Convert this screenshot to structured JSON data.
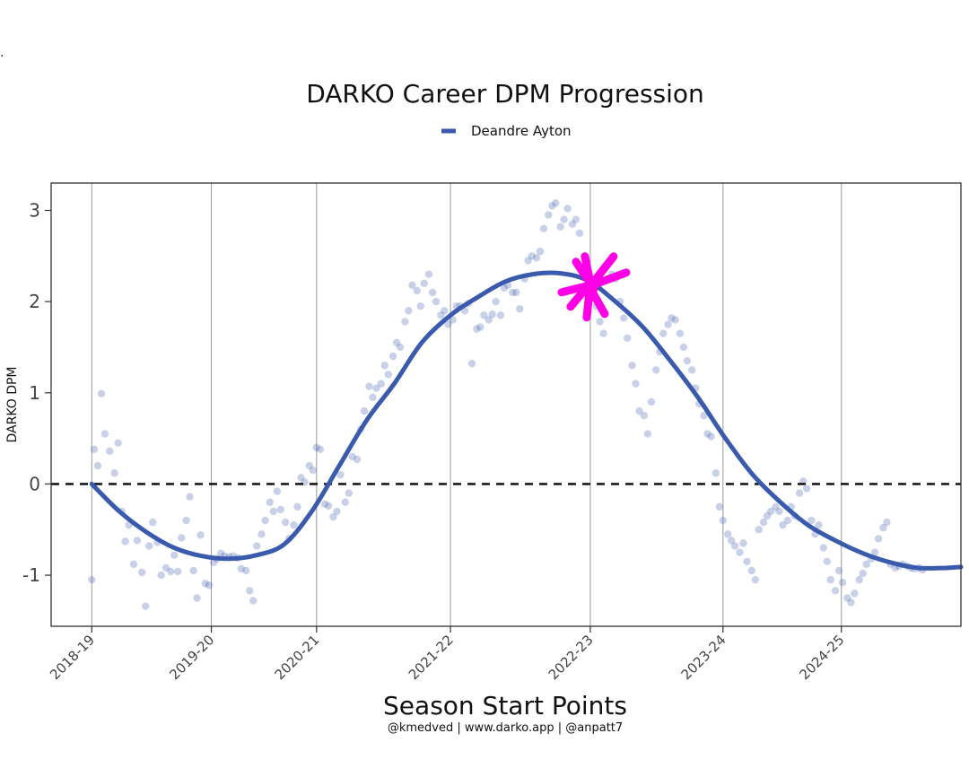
{
  "chart_data": {
    "type": "scatter",
    "title": "DARKO Career DPM Progression",
    "xlabel": "Season Start Points",
    "ylabel": "DARKO DPM",
    "credit": "@kmedved | www.darko.app | @anpatt7",
    "corner_mark": ".",
    "x_axis_type": "seasons",
    "x_ticks": [
      {
        "label": "2018-19",
        "pos": 0
      },
      {
        "label": "2019-20",
        "pos": 1
      },
      {
        "label": "2020-21",
        "pos": 1.88
      },
      {
        "label": "2021-22",
        "pos": 3.0
      },
      {
        "label": "2022-23",
        "pos": 4.17
      },
      {
        "label": "2023-24",
        "pos": 5.28
      },
      {
        "label": "2024-25",
        "pos": 6.27
      }
    ],
    "xlim": [
      -0.34,
      7.27
    ],
    "ylim": [
      -1.56,
      3.3
    ],
    "yticks": [
      -1,
      0,
      1,
      2,
      3
    ],
    "reference_line": {
      "y": 0,
      "style": "dashed",
      "color": "#000000"
    },
    "grid": "vertical lines at season starts",
    "legend_position": "top-center",
    "series": [
      {
        "name": "Deandre Ayton",
        "color": "#3a5aad",
        "smooth": [
          [
            0.0,
            0.0
          ],
          [
            0.23,
            -0.3
          ],
          [
            0.46,
            -0.53
          ],
          [
            0.69,
            -0.7
          ],
          [
            0.92,
            -0.79
          ],
          [
            1.15,
            -0.82
          ],
          [
            1.38,
            -0.78
          ],
          [
            1.61,
            -0.66
          ],
          [
            1.84,
            -0.3
          ],
          [
            2.07,
            0.2
          ],
          [
            2.3,
            0.7
          ],
          [
            2.53,
            1.1
          ],
          [
            2.76,
            1.55
          ],
          [
            3.0,
            1.85
          ],
          [
            3.23,
            2.05
          ],
          [
            3.46,
            2.22
          ],
          [
            3.69,
            2.3
          ],
          [
            3.92,
            2.31
          ],
          [
            4.15,
            2.23
          ],
          [
            4.38,
            2.0
          ],
          [
            4.61,
            1.72
          ],
          [
            4.84,
            1.35
          ],
          [
            5.07,
            0.95
          ],
          [
            5.3,
            0.5
          ],
          [
            5.53,
            0.1
          ],
          [
            5.76,
            -0.2
          ],
          [
            5.99,
            -0.45
          ],
          [
            6.22,
            -0.62
          ],
          [
            6.45,
            -0.76
          ],
          [
            6.68,
            -0.86
          ],
          [
            6.91,
            -0.92
          ],
          [
            7.14,
            -0.92
          ],
          [
            7.27,
            -0.91
          ]
        ],
        "points": [
          [
            0.0,
            -1.05
          ],
          [
            0.02,
            0.38
          ],
          [
            0.05,
            0.2
          ],
          [
            0.08,
            0.99
          ],
          [
            0.11,
            0.55
          ],
          [
            0.15,
            0.36
          ],
          [
            0.19,
            0.12
          ],
          [
            0.22,
            0.45
          ],
          [
            0.25,
            -0.3
          ],
          [
            0.28,
            -0.63
          ],
          [
            0.31,
            -0.45
          ],
          [
            0.35,
            -0.88
          ],
          [
            0.38,
            -0.62
          ],
          [
            0.42,
            -0.97
          ],
          [
            0.45,
            -1.34
          ],
          [
            0.48,
            -0.68
          ],
          [
            0.51,
            -0.42
          ],
          [
            0.55,
            -0.64
          ],
          [
            0.58,
            -1.0
          ],
          [
            0.62,
            -0.92
          ],
          [
            0.66,
            -0.96
          ],
          [
            0.69,
            -0.78
          ],
          [
            0.72,
            -0.96
          ],
          [
            0.75,
            -0.59
          ],
          [
            0.79,
            -0.4
          ],
          [
            0.82,
            -0.14
          ],
          [
            0.85,
            -0.95
          ],
          [
            0.88,
            -1.25
          ],
          [
            0.91,
            -0.56
          ],
          [
            0.95,
            -1.09
          ],
          [
            0.98,
            -1.11
          ],
          [
            1.02,
            -0.86
          ],
          [
            1.05,
            -0.82
          ],
          [
            1.08,
            -0.76
          ],
          [
            1.11,
            -0.79
          ],
          [
            1.15,
            -0.8
          ],
          [
            1.18,
            -0.79
          ],
          [
            1.22,
            -0.81
          ],
          [
            1.25,
            -0.93
          ],
          [
            1.29,
            -0.95
          ],
          [
            1.32,
            -1.17
          ],
          [
            1.35,
            -1.28
          ],
          [
            1.38,
            -0.68
          ],
          [
            1.42,
            -0.55
          ],
          [
            1.45,
            -0.4
          ],
          [
            1.49,
            -0.2
          ],
          [
            1.52,
            -0.3
          ],
          [
            1.55,
            -0.08
          ],
          [
            1.58,
            -0.28
          ],
          [
            1.62,
            -0.42
          ],
          [
            1.65,
            -0.6
          ],
          [
            1.69,
            -0.45
          ],
          [
            1.72,
            -0.25
          ],
          [
            1.75,
            0.07
          ],
          [
            1.78,
            0.02
          ],
          [
            1.82,
            0.2
          ],
          [
            1.85,
            0.15
          ],
          [
            1.88,
            0.4
          ],
          [
            1.91,
            0.38
          ],
          [
            1.95,
            -0.22
          ],
          [
            1.98,
            -0.24
          ],
          [
            2.02,
            -0.36
          ],
          [
            2.05,
            -0.3
          ],
          [
            2.08,
            0.1
          ],
          [
            2.12,
            -0.2
          ],
          [
            2.15,
            -0.1
          ],
          [
            2.18,
            0.3
          ],
          [
            2.22,
            0.27
          ],
          [
            2.25,
            0.6
          ],
          [
            2.28,
            0.8
          ],
          [
            2.32,
            1.07
          ],
          [
            2.35,
            0.95
          ],
          [
            2.38,
            1.05
          ],
          [
            2.42,
            1.1
          ],
          [
            2.45,
            1.3
          ],
          [
            2.48,
            1.2
          ],
          [
            2.52,
            1.4
          ],
          [
            2.55,
            1.55
          ],
          [
            2.58,
            1.5
          ],
          [
            2.62,
            1.78
          ],
          [
            2.65,
            1.9
          ],
          [
            2.68,
            2.18
          ],
          [
            2.72,
            2.12
          ],
          [
            2.75,
            1.95
          ],
          [
            2.78,
            2.2
          ],
          [
            2.82,
            2.3
          ],
          [
            2.85,
            2.1
          ],
          [
            2.88,
            2.0
          ],
          [
            2.92,
            1.85
          ],
          [
            2.95,
            1.9
          ],
          [
            2.98,
            1.75
          ],
          [
            3.02,
            1.8
          ],
          [
            3.05,
            1.95
          ],
          [
            3.08,
            1.95
          ],
          [
            3.12,
            1.9
          ],
          [
            3.15,
            1.98
          ],
          [
            3.18,
            1.32
          ],
          [
            3.22,
            1.7
          ],
          [
            3.25,
            1.72
          ],
          [
            3.28,
            1.85
          ],
          [
            3.32,
            1.8
          ],
          [
            3.35,
            1.86
          ],
          [
            3.38,
            2.0
          ],
          [
            3.42,
            1.85
          ],
          [
            3.45,
            2.15
          ],
          [
            3.48,
            2.18
          ],
          [
            3.52,
            2.1
          ],
          [
            3.55,
            2.1
          ],
          [
            3.58,
            1.92
          ],
          [
            3.62,
            2.25
          ],
          [
            3.65,
            2.45
          ],
          [
            3.68,
            2.5
          ],
          [
            3.72,
            2.48
          ],
          [
            3.75,
            2.55
          ],
          [
            3.78,
            2.8
          ],
          [
            3.82,
            2.95
          ],
          [
            3.85,
            3.05
          ],
          [
            3.88,
            3.08
          ],
          [
            3.92,
            2.82
          ],
          [
            3.95,
            2.9
          ],
          [
            3.98,
            3.02
          ],
          [
            4.02,
            2.85
          ],
          [
            4.05,
            2.9
          ],
          [
            4.08,
            2.75
          ],
          [
            4.12,
            2.5
          ],
          [
            4.15,
            2.3
          ],
          [
            4.18,
            2.2
          ],
          [
            4.22,
            1.95
          ],
          [
            4.25,
            1.78
          ],
          [
            4.28,
            1.65
          ],
          [
            4.32,
            2.42
          ],
          [
            4.35,
            2.3
          ],
          [
            4.38,
            2.25
          ],
          [
            4.42,
            2.0
          ],
          [
            4.45,
            1.82
          ],
          [
            4.48,
            1.6
          ],
          [
            4.52,
            1.3
          ],
          [
            4.55,
            1.1
          ],
          [
            4.58,
            0.8
          ],
          [
            4.62,
            0.75
          ],
          [
            4.65,
            0.55
          ],
          [
            4.68,
            0.9
          ],
          [
            4.72,
            1.25
          ],
          [
            4.75,
            1.45
          ],
          [
            4.78,
            1.65
          ],
          [
            4.82,
            1.75
          ],
          [
            4.85,
            1.82
          ],
          [
            4.88,
            1.8
          ],
          [
            4.92,
            1.65
          ],
          [
            4.95,
            1.5
          ],
          [
            4.98,
            1.35
          ],
          [
            5.02,
            1.25
          ],
          [
            5.05,
            1.05
          ],
          [
            5.08,
            0.88
          ],
          [
            5.12,
            0.75
          ],
          [
            5.15,
            0.55
          ],
          [
            5.18,
            0.52
          ],
          [
            5.22,
            0.12
          ],
          [
            5.25,
            -0.25
          ],
          [
            5.28,
            -0.4
          ],
          [
            5.32,
            -0.55
          ],
          [
            5.35,
            -0.62
          ],
          [
            5.38,
            -0.68
          ],
          [
            5.42,
            -0.75
          ],
          [
            5.45,
            -0.65
          ],
          [
            5.48,
            -0.85
          ],
          [
            5.52,
            -0.95
          ],
          [
            5.55,
            -1.05
          ],
          [
            5.58,
            -0.5
          ],
          [
            5.62,
            -0.42
          ],
          [
            5.65,
            -0.35
          ],
          [
            5.68,
            -0.3
          ],
          [
            5.72,
            -0.25
          ],
          [
            5.75,
            -0.3
          ],
          [
            5.78,
            -0.45
          ],
          [
            5.82,
            -0.4
          ],
          [
            5.85,
            -0.25
          ],
          [
            5.88,
            -0.35
          ],
          [
            5.92,
            -0.1
          ],
          [
            5.95,
            0.03
          ],
          [
            5.98,
            -0.05
          ],
          [
            6.02,
            -0.4
          ],
          [
            6.05,
            -0.55
          ],
          [
            6.08,
            -0.45
          ],
          [
            6.12,
            -0.7
          ],
          [
            6.15,
            -0.85
          ],
          [
            6.18,
            -1.05
          ],
          [
            6.22,
            -1.17
          ],
          [
            6.25,
            -0.95
          ],
          [
            6.28,
            -1.08
          ],
          [
            6.32,
            -1.25
          ],
          [
            6.35,
            -1.3
          ],
          [
            6.38,
            -1.2
          ],
          [
            6.42,
            -1.05
          ],
          [
            6.45,
            -0.98
          ],
          [
            6.48,
            -0.88
          ],
          [
            6.52,
            -0.82
          ],
          [
            6.55,
            -0.75
          ],
          [
            6.58,
            -0.6
          ],
          [
            6.62,
            -0.48
          ],
          [
            6.65,
            -0.42
          ],
          [
            6.68,
            -0.88
          ],
          [
            6.72,
            -0.92
          ],
          [
            6.75,
            -0.9
          ],
          [
            6.78,
            -0.88
          ],
          [
            6.82,
            -0.9
          ],
          [
            6.85,
            -0.92
          ],
          [
            6.88,
            -0.93
          ],
          [
            6.92,
            -0.92
          ],
          [
            6.95,
            -0.94
          ]
        ]
      }
    ],
    "annotation": {
      "type": "hand-drawn asterisk",
      "color": "#ff00e6",
      "x": 4.17,
      "y": 2.2
    }
  }
}
